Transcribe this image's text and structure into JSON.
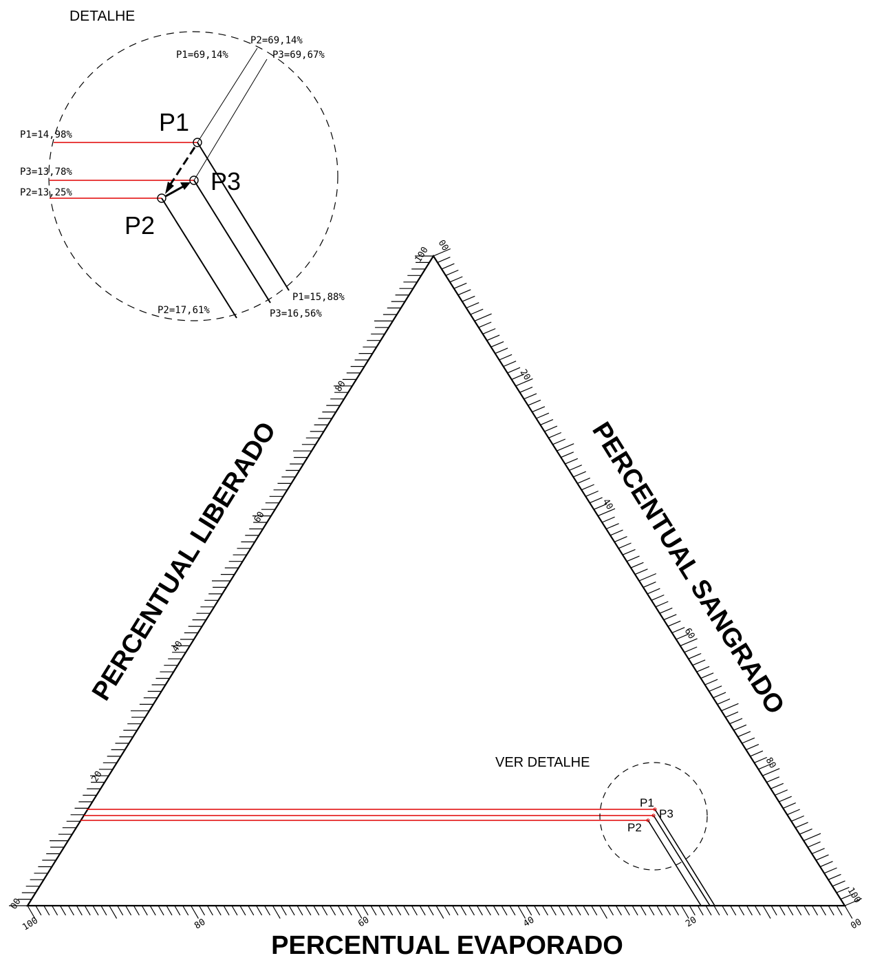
{
  "detail_title": "DETALHE",
  "see_detail_label": "VER  DETALHE",
  "axis_titles": {
    "left": "PERCENTUAL LIBERADO",
    "right": "PERCENTUAL SANGRADO",
    "bottom": "PERCENTUAL EVAPORADO"
  },
  "left_ticks": [
    "00",
    "20",
    "40",
    "60",
    "80",
    "100"
  ],
  "right_ticks": [
    "00",
    "20",
    "40",
    "60",
    "80",
    "100"
  ],
  "bottom_ticks": [
    "100",
    "80",
    "60",
    "40",
    "20",
    "00"
  ],
  "points": [
    {
      "name": "P1",
      "evaporado": 69.14,
      "liberado": 14.98,
      "sangrado": 15.88
    },
    {
      "name": "P2",
      "evaporado": 69.14,
      "liberado": 13.25,
      "sangrado": 17.61
    },
    {
      "name": "P3",
      "evaporado": 69.67,
      "liberado": 13.78,
      "sangrado": 16.56
    }
  ],
  "detail_labels": {
    "top_p2": "P2=69,14%",
    "top_p1": "P1=69,14%",
    "top_p3": "P3=69,67%",
    "left_p1": "P1=14,98%",
    "left_p3": "P3=13,78%",
    "left_p2": "P2=13,25%",
    "bottom_p1": "P1=15,88%",
    "bottom_p3": "P3=16,56%",
    "bottom_p2": "P2=17,61%"
  },
  "point_labels": {
    "p1": "P1",
    "p2": "P2",
    "p3": "P3"
  },
  "colors": {
    "line": "#000000",
    "guide": "#e00000"
  }
}
